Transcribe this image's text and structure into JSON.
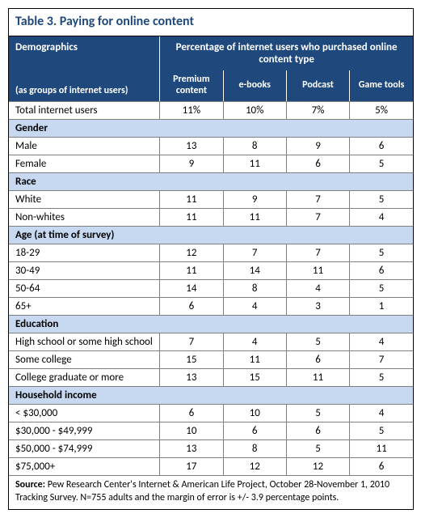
{
  "title": "Table 3. Paying for online content",
  "header": {
    "demo_label": "Demographics",
    "demo_sub": "(as groups of internet users)",
    "span_label": "Percentage of internet users who purchased online content type",
    "columns": [
      "Premium content",
      "e-books",
      "Podcast",
      "Game tools"
    ]
  },
  "total_row": {
    "label": "Total internet users",
    "values": [
      "11%",
      "10%",
      "7%",
      "5%"
    ]
  },
  "groups": [
    {
      "name": "Gender",
      "rows": [
        {
          "label": "Male",
          "values": [
            "13",
            "8",
            "9",
            "6"
          ]
        },
        {
          "label": "Female",
          "values": [
            "9",
            "11",
            "6",
            "5"
          ]
        }
      ]
    },
    {
      "name": "Race",
      "rows": [
        {
          "label": "White",
          "values": [
            "11",
            "9",
            "7",
            "5"
          ]
        },
        {
          "label": "Non-whites",
          "values": [
            "11",
            "11",
            "7",
            "4"
          ]
        }
      ]
    },
    {
      "name": "Age (at time of survey)",
      "rows": [
        {
          "label": "18-29",
          "values": [
            "12",
            "7",
            "7",
            "5"
          ]
        },
        {
          "label": "30-49",
          "values": [
            "11",
            "14",
            "11",
            "6"
          ]
        },
        {
          "label": "50-64",
          "values": [
            "14",
            "8",
            "4",
            "5"
          ]
        },
        {
          "label": "65+",
          "values": [
            "6",
            "4",
            "3",
            "1"
          ]
        }
      ]
    },
    {
      "name": "Education",
      "rows": [
        {
          "label": "High school or some high school",
          "values": [
            "7",
            "4",
            "5",
            "4"
          ]
        },
        {
          "label": "Some college",
          "values": [
            "15",
            "11",
            "6",
            "7"
          ]
        },
        {
          "label": "College graduate or more",
          "values": [
            "13",
            "15",
            "11",
            "5"
          ]
        }
      ]
    },
    {
      "name": "Household income",
      "rows": [
        {
          "label": "< $30,000",
          "values": [
            "6",
            "10",
            "5",
            "4"
          ]
        },
        {
          "label": "$30,000 - $49,999",
          "values": [
            "10",
            "6",
            "6",
            "5"
          ]
        },
        {
          "label": "$50,000 - $74,999",
          "values": [
            "13",
            "8",
            "5",
            "11"
          ]
        },
        {
          "label": "$75,000+",
          "values": [
            "17",
            "12",
            "12",
            "6"
          ]
        }
      ]
    }
  ],
  "source": {
    "label": "Source:",
    "text": " Pew Research Center's Internet & American Life Project, October 28-November 1, 2010 Tracking Survey. N=755 adults and the margin of error is +/- 3.9 percentage points."
  },
  "style": {
    "header_bg": "#1f497d",
    "section_bg": "#c6d9f1",
    "border_color": "#7f7f7f",
    "title_color": "#1f497d"
  }
}
